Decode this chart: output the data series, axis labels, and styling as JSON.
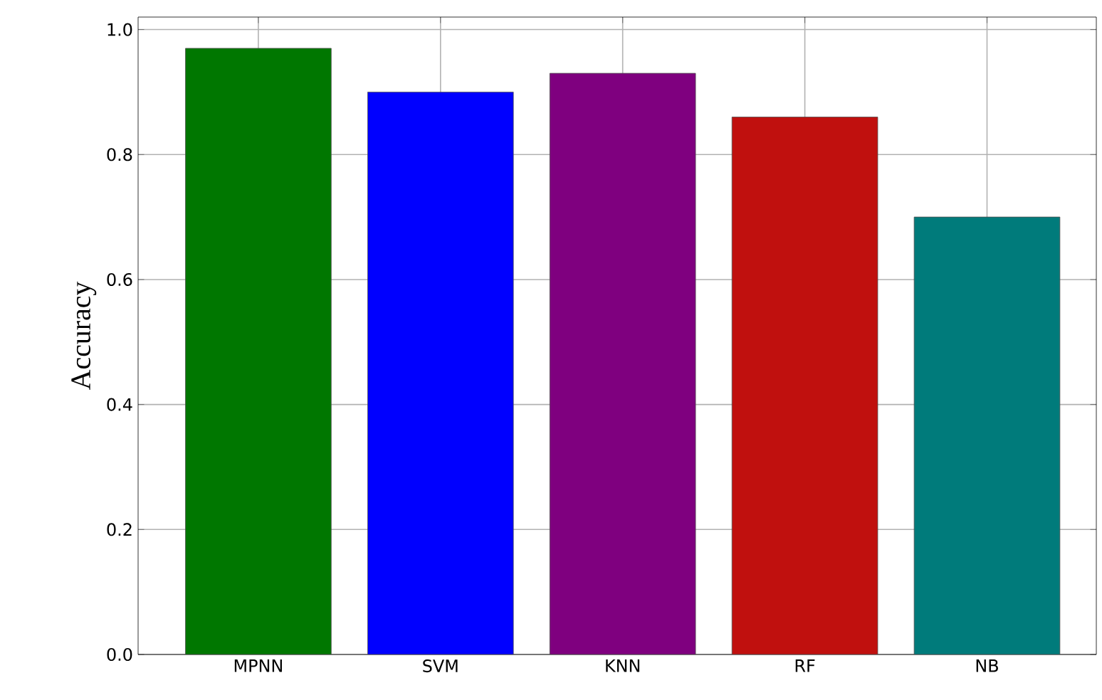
{
  "chart_data": {
    "type": "bar",
    "ylabel": "Accuracy",
    "categories": [
      "MPNN",
      "SVM",
      "KNN",
      "RF",
      "NB"
    ],
    "values": [
      0.97,
      0.9,
      0.93,
      0.86,
      0.7
    ],
    "colors": [
      "#007700",
      "#0000ff",
      "#7f007f",
      "#c0100e",
      "#007b7b"
    ],
    "ylim": [
      0,
      1.02
    ],
    "yticks": [
      {
        "value": 0,
        "label": "0.0"
      },
      {
        "value": 0.2,
        "label": "0.2"
      },
      {
        "value": 0.4,
        "label": "0.4"
      },
      {
        "value": 0.6,
        "label": "0.6"
      },
      {
        "value": 0.8,
        "label": "0.8"
      },
      {
        "value": 1.0,
        "label": "1.0"
      }
    ],
    "grid": true
  }
}
